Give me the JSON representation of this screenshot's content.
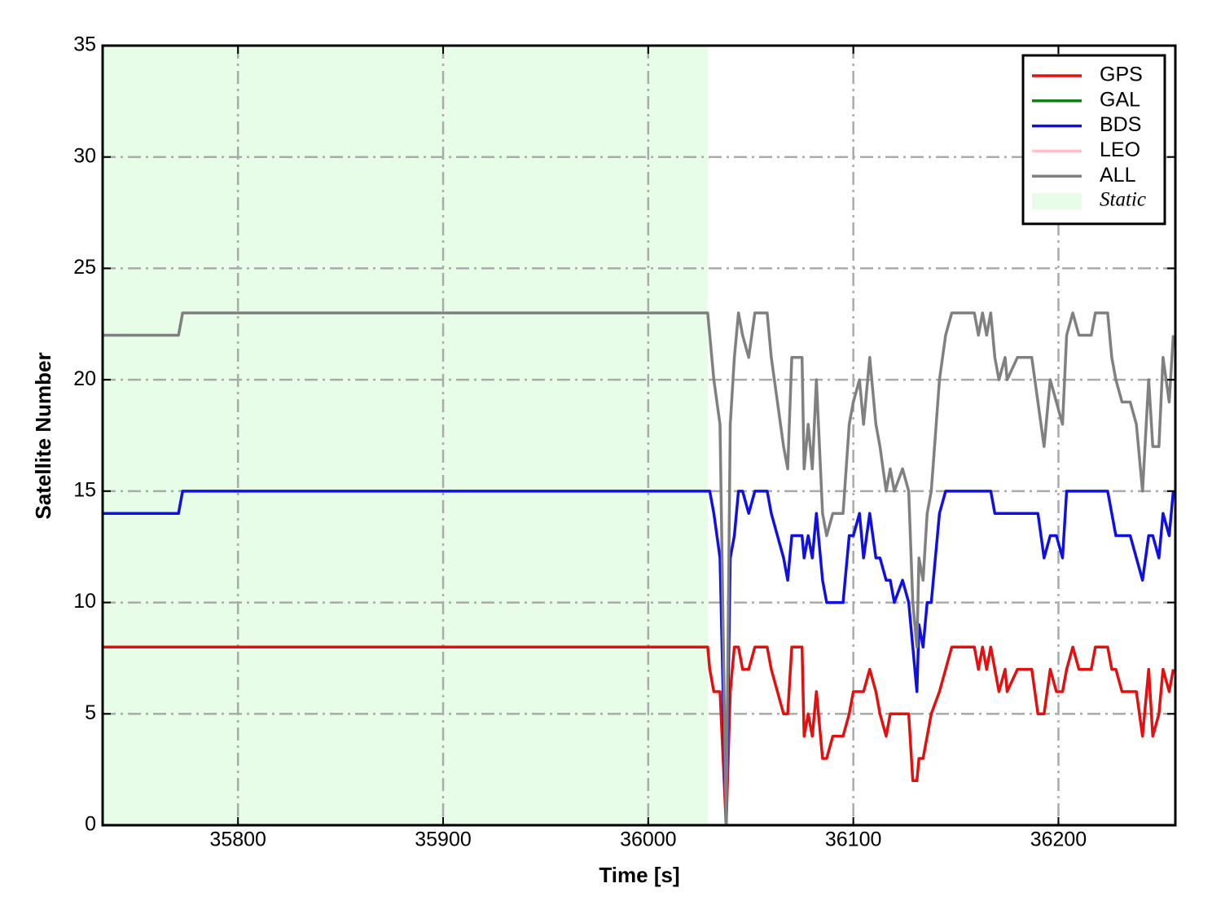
{
  "chart_data": {
    "type": "line",
    "xlabel": "Time [s]",
    "ylabel": "Satellite Number",
    "xlim": [
      35734,
      36257
    ],
    "ylim": [
      0,
      35
    ],
    "xticks": [
      35800,
      35900,
      36000,
      36100,
      36200
    ],
    "yticks": [
      0,
      5,
      10,
      15,
      20,
      25,
      30,
      35
    ],
    "grid": true,
    "legend": "upper right",
    "shaded_regions": [
      {
        "name": "Static",
        "color": "#e8fde8",
        "x": [
          35734,
          36029
        ]
      }
    ],
    "x": [
      35734,
      35771,
      35773,
      36029,
      36030,
      36032,
      36035,
      36038,
      36040,
      36042,
      36044,
      36046,
      36049,
      36052,
      36058,
      36060,
      36063,
      36066,
      36068,
      36070,
      36075,
      36076,
      36078,
      36080,
      36082,
      36085,
      36087,
      36090,
      36095,
      36098,
      36100,
      36103,
      36105,
      36108,
      36111,
      36113,
      36116,
      36118,
      36120,
      36124,
      36127,
      36129,
      36131,
      36132,
      36134,
      36136,
      36138,
      36142,
      36145,
      36148,
      36159,
      36161,
      36163,
      36165,
      36167,
      36169,
      36171,
      36174,
      36175,
      36180,
      36187,
      36190,
      36193,
      36196,
      36199,
      36202,
      36204,
      36207,
      36210,
      36216,
      36218,
      36224,
      36226,
      36228,
      36231,
      36235,
      36238,
      36241,
      36244,
      36246,
      36249,
      36251,
      36254,
      36256
    ],
    "series": [
      {
        "name": "GPS",
        "color": "#e41010",
        "values": [
          8,
          8,
          8,
          8,
          7,
          6,
          6,
          0,
          6,
          8,
          8,
          7,
          7,
          8,
          8,
          7,
          6,
          5,
          5,
          8,
          8,
          4,
          5,
          4,
          6,
          3,
          3,
          4,
          4,
          5,
          6,
          6,
          6,
          7,
          6,
          5,
          4,
          5,
          5,
          5,
          5,
          2,
          2,
          3,
          3,
          4,
          5,
          6,
          7,
          8,
          8,
          7,
          8,
          7,
          8,
          7,
          6,
          7,
          6,
          7,
          7,
          5,
          5,
          7,
          6,
          6,
          7,
          8,
          7,
          7,
          8,
          8,
          7,
          7,
          6,
          6,
          6,
          4,
          7,
          4,
          5,
          7,
          6,
          7
        ]
      },
      {
        "name": "GAL",
        "color": "#138013",
        "values": [
          0,
          0,
          0,
          0,
          0,
          0,
          0,
          0,
          0,
          0,
          0,
          0,
          0,
          0,
          0,
          0,
          0,
          0,
          0,
          0,
          0,
          0,
          0,
          0,
          0,
          0,
          0,
          0,
          0,
          0,
          0,
          0,
          0,
          0,
          0,
          0,
          0,
          0,
          0,
          0,
          0,
          0,
          0,
          0,
          0,
          0,
          0,
          0,
          0,
          0,
          0,
          0,
          0,
          0,
          0,
          0,
          0,
          0,
          0,
          0,
          0,
          0,
          0,
          0,
          0,
          0,
          0,
          0,
          0,
          0,
          0,
          0,
          0,
          0,
          0,
          0,
          0,
          0,
          0,
          0,
          0,
          0,
          0,
          0
        ]
      },
      {
        "name": "BDS",
        "color": "#1010e4",
        "values": [
          14,
          14,
          15,
          15,
          15,
          14,
          12,
          0,
          12,
          13,
          15,
          15,
          14,
          15,
          15,
          14,
          13,
          12,
          11,
          13,
          13,
          12,
          13,
          12,
          14,
          11,
          10,
          10,
          10,
          13,
          13,
          14,
          12,
          14,
          12,
          12,
          11,
          11,
          10,
          11,
          10,
          8,
          6,
          9,
          8,
          10,
          10,
          14,
          15,
          15,
          15,
          15,
          15,
          15,
          15,
          14,
          14,
          14,
          14,
          14,
          14,
          14,
          12,
          13,
          13,
          12,
          15,
          15,
          15,
          15,
          15,
          15,
          14,
          13,
          13,
          13,
          12,
          11,
          13,
          13,
          12,
          14,
          13,
          15
        ]
      },
      {
        "name": "LEO",
        "color": "#ffc0cb",
        "values": [
          0,
          0,
          0,
          0,
          0,
          0,
          0,
          0,
          0,
          0,
          0,
          0,
          0,
          0,
          0,
          0,
          0,
          0,
          0,
          0,
          0,
          0,
          0,
          0,
          0,
          0,
          0,
          0,
          0,
          0,
          0,
          0,
          0,
          0,
          0,
          0,
          0,
          0,
          0,
          0,
          0,
          0,
          0,
          0,
          0,
          0,
          0,
          0,
          0,
          0,
          0,
          0,
          0,
          0,
          0,
          0,
          0,
          0,
          0,
          0,
          0,
          0,
          0,
          0,
          0,
          0,
          0,
          0,
          0,
          0,
          0,
          0,
          0,
          0,
          0,
          0,
          0,
          0,
          0,
          0,
          0,
          0,
          0,
          0
        ]
      },
      {
        "name": "ALL",
        "color": "#808080",
        "values": [
          22,
          22,
          23,
          23,
          22,
          20,
          18,
          0,
          18,
          21,
          23,
          22,
          21,
          23,
          23,
          21,
          19,
          17,
          16,
          21,
          21,
          16,
          18,
          16,
          20,
          14,
          13,
          14,
          14,
          18,
          19,
          20,
          18,
          21,
          18,
          17,
          15,
          16,
          15,
          16,
          15,
          10,
          8,
          12,
          11,
          14,
          15,
          20,
          22,
          23,
          23,
          22,
          23,
          22,
          23,
          21,
          20,
          21,
          20,
          21,
          21,
          19,
          17,
          20,
          19,
          18,
          22,
          23,
          22,
          22,
          23,
          23,
          21,
          20,
          19,
          19,
          18,
          15,
          20,
          17,
          17,
          21,
          19,
          22
        ]
      }
    ]
  }
}
